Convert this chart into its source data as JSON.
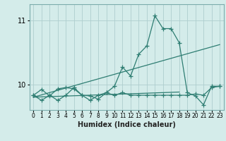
{
  "xlabel": "Humidex (Indice chaleur)",
  "bg_color": "#d4ecea",
  "grid_color": "#aecece",
  "line_color": "#2e7d72",
  "xlim": [
    -0.5,
    23.5
  ],
  "ylim": [
    9.6,
    11.25
  ],
  "yticks": [
    10,
    11
  ],
  "xticks": [
    0,
    1,
    2,
    3,
    4,
    5,
    6,
    7,
    8,
    9,
    10,
    11,
    12,
    13,
    14,
    15,
    16,
    17,
    18,
    19,
    20,
    21,
    22,
    23
  ],
  "series1_x": [
    0,
    1,
    2,
    3,
    4,
    5,
    6,
    7,
    8,
    9,
    10,
    11,
    12,
    13,
    14,
    15,
    16,
    17,
    18,
    19,
    20,
    21,
    22,
    23
  ],
  "series1_y": [
    9.83,
    9.92,
    9.82,
    9.93,
    9.95,
    9.93,
    9.83,
    9.82,
    9.77,
    9.87,
    9.97,
    10.27,
    10.13,
    10.47,
    10.6,
    11.07,
    10.87,
    10.87,
    10.65,
    9.87,
    9.82,
    9.68,
    9.97,
    9.97
  ],
  "series2_x": [
    0,
    1,
    2,
    3,
    4,
    5,
    6,
    7,
    8,
    9,
    10,
    11,
    12,
    13,
    14,
    15,
    16,
    17,
    18,
    19,
    20,
    21,
    22,
    23
  ],
  "series2_y": [
    9.83,
    9.75,
    9.83,
    9.75,
    9.83,
    9.95,
    9.83,
    9.75,
    9.83,
    9.87,
    9.83,
    9.87,
    9.83,
    9.83,
    9.83,
    9.83,
    9.83,
    9.83,
    9.83,
    9.83,
    9.85,
    9.83,
    9.95,
    9.97
  ],
  "trend1_x": [
    0,
    23
  ],
  "trend1_y": [
    9.8,
    10.62
  ],
  "trend2_x": [
    0,
    18
  ],
  "trend2_y": [
    9.8,
    9.88
  ]
}
